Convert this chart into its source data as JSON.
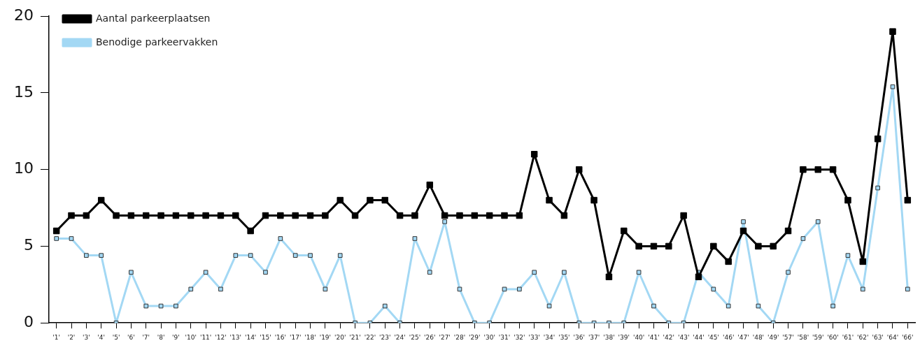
{
  "chart_data": {
    "type": "line",
    "categories": [
      "'1'",
      "'2'",
      "'3'",
      "'4'",
      "'5'",
      "'6'",
      "'7'",
      "'8'",
      "'9'",
      "'10'",
      "'11'",
      "'12'",
      "'13'",
      "'14'",
      "'15'",
      "'16'",
      "'17'",
      "'18'",
      "'19'",
      "'20'",
      "'21'",
      "'22'",
      "'23'",
      "'24'",
      "'25'",
      "'26'",
      "'27'",
      "'28'",
      "'29'",
      "'30'",
      "'31'",
      "'32'",
      "'33'",
      "'34'",
      "'35'",
      "'36'",
      "'37'",
      "'38'",
      "'39'",
      "'40'",
      "'41'",
      "'42'",
      "'43'",
      "'44'",
      "'45'",
      "'46'",
      "'47'",
      "'48'",
      "'49'",
      "'57'",
      "'58'",
      "'59'",
      "'60'",
      "'61'",
      "'62'",
      "'63'",
      "'64'",
      "'66'"
    ],
    "series": [
      {
        "name": "Benodige parkeervakken",
        "color": "#a3d8f4",
        "values": [
          5.5,
          5.5,
          4.4,
          4.4,
          0,
          3.3,
          1.1,
          1.1,
          1.1,
          2.2,
          3.3,
          2.2,
          4.4,
          4.4,
          3.3,
          5.5,
          4.4,
          4.4,
          2.2,
          4.4,
          0,
          0,
          1.1,
          0,
          5.5,
          3.3,
          6.6,
          2.2,
          0,
          0,
          2.2,
          2.2,
          3.3,
          1.1,
          3.3,
          0,
          0,
          0,
          0,
          3.3,
          1.1,
          0,
          0,
          3.3,
          2.2,
          1.1,
          6.6,
          1.1,
          0,
          3.3,
          5.5,
          6.6,
          1.1,
          4.4,
          2.2,
          8.8,
          15.4,
          2.2
        ]
      },
      {
        "name": "Aantal parkeerplaatsen",
        "color": "#000000",
        "values": [
          6,
          7,
          7,
          8,
          7,
          7,
          7,
          7,
          7,
          7,
          7,
          7,
          7,
          6,
          7,
          7,
          7,
          7,
          7,
          8,
          7,
          8,
          8,
          7,
          7,
          9,
          7,
          7,
          7,
          7,
          7,
          7,
          11,
          8,
          7,
          10,
          8,
          3,
          6,
          5,
          5,
          5,
          7,
          3,
          5,
          4,
          6,
          5,
          5,
          6,
          10,
          10,
          10,
          8,
          4,
          12,
          19,
          8
        ]
      }
    ],
    "ylim": [
      0,
      20
    ],
    "yticks": [
      0,
      5,
      10,
      15,
      20
    ],
    "legend": "top left",
    "marker": "square",
    "line_style": "solid"
  }
}
